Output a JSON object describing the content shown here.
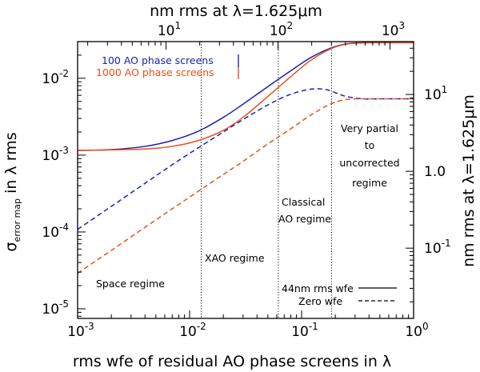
{
  "chart_data": {
    "type": "line",
    "title": "",
    "xlabel": "rms wfe of residual AO phase screens in λ",
    "ylabel_main": "σ",
    "ylabel_sub": "error map",
    "ylabel_tail": " in λ rms",
    "x2label": "nm rms at λ=1.625μm",
    "y2label": "nm rms at λ=1.625μm",
    "xscale": "log",
    "yscale": "log",
    "xlim": [
      0.001,
      1
    ],
    "ylim": [
      7.5e-06,
      0.03
    ],
    "x_ticks": [
      {
        "base": "10",
        "exp": "-3",
        "value": 0.001
      },
      {
        "base": "10",
        "exp": "-2",
        "value": 0.01
      },
      {
        "base": "10",
        "exp": "-1",
        "value": 0.1
      },
      {
        "base": "10",
        "exp": "0",
        "value": 1
      }
    ],
    "y_ticks": [
      {
        "base": "10",
        "exp": "-5",
        "value": 1e-05
      },
      {
        "base": "10",
        "exp": "-4",
        "value": 0.0001
      },
      {
        "base": "10",
        "exp": "-3",
        "value": 0.001
      },
      {
        "base": "10",
        "exp": "-2",
        "value": 0.01
      }
    ],
    "x2_ticks": [
      {
        "base": "10",
        "exp": "1",
        "value_nm": 10
      },
      {
        "base": "10",
        "exp": "2",
        "value_nm": 100
      },
      {
        "base": "10",
        "exp": "3",
        "value_nm": 1000
      }
    ],
    "y2_ticks": [
      {
        "base": "10",
        "exp": "1",
        "value_nm": 10
      },
      {
        "text": "1.0",
        "value_nm": 1
      },
      {
        "base": "10",
        "exp": "-1",
        "value_nm": 0.1
      }
    ],
    "wavelength_nm": 1625,
    "vertical_lines_x": [
      0.0127,
      0.062,
      0.185
    ],
    "legend": {
      "position": "top-left",
      "entries": [
        {
          "label": "100 AO phase screens",
          "color": "#1a22b0"
        },
        {
          "label": "1000 AO phase screens",
          "color": "#e8501a"
        }
      ]
    },
    "linestyle_legend": {
      "position": "bottom-right",
      "entries": [
        {
          "label": "44nm rms wfe",
          "style": "solid"
        },
        {
          "label": "Zero wfe",
          "style": "dashed"
        }
      ]
    },
    "annotations": {
      "space": "Space regime",
      "xao": "XAO regime",
      "classical_1": "Classical",
      "classical_2": "AO regime",
      "partial_1": "Very partial",
      "partial_2": "to",
      "partial_3": "uncorrected",
      "partial_4": "regime"
    },
    "series": [
      {
        "name": "100 AO phase screens, 44nm rms wfe",
        "color": "#1a22b0",
        "style": "solid",
        "x": [
          0.001,
          0.002,
          0.004,
          0.007,
          0.012,
          0.02,
          0.03,
          0.05,
          0.08,
          0.12,
          0.18,
          0.25,
          0.35,
          0.5,
          1.0
        ],
        "y": [
          0.00115,
          0.00118,
          0.0013,
          0.00155,
          0.00205,
          0.0031,
          0.0046,
          0.0078,
          0.0125,
          0.0185,
          0.0245,
          0.028,
          0.029,
          0.029,
          0.029
        ]
      },
      {
        "name": "1000 AO phase screens, 44nm rms wfe",
        "color": "#e8501a",
        "style": "solid",
        "x": [
          0.001,
          0.002,
          0.004,
          0.007,
          0.012,
          0.02,
          0.03,
          0.05,
          0.08,
          0.12,
          0.18,
          0.25,
          0.35,
          0.5,
          1.0
        ],
        "y": [
          0.00115,
          0.00117,
          0.0012,
          0.0013,
          0.00155,
          0.0021,
          0.0031,
          0.0058,
          0.0105,
          0.017,
          0.024,
          0.0278,
          0.0288,
          0.029,
          0.029
        ]
      },
      {
        "name": "100 AO phase screens, Zero wfe",
        "color": "#1a22b0",
        "style": "dashed",
        "x": [
          0.001,
          0.002,
          0.004,
          0.007,
          0.012,
          0.02,
          0.03,
          0.05,
          0.08,
          0.12,
          0.16,
          0.2,
          0.25,
          0.35,
          0.5,
          1.0
        ],
        "y": [
          0.000108,
          0.000215,
          0.00043,
          0.00075,
          0.00125,
          0.002,
          0.0029,
          0.0045,
          0.0062,
          0.0072,
          0.0072,
          0.0065,
          0.0058,
          0.0054,
          0.0054,
          0.0054
        ]
      },
      {
        "name": "1000 AO phase screens, Zero wfe",
        "color": "#e8501a",
        "style": "dashed",
        "x": [
          0.001,
          0.002,
          0.004,
          0.007,
          0.012,
          0.02,
          0.03,
          0.05,
          0.08,
          0.12,
          0.18,
          0.25,
          0.35,
          0.5,
          1.0
        ],
        "y": [
          2.9e-05,
          5.75e-05,
          0.000115,
          0.0002,
          0.00034,
          0.00056,
          0.00083,
          0.0014,
          0.0022,
          0.0033,
          0.0046,
          0.0053,
          0.0054,
          0.0054,
          0.0054
        ]
      }
    ]
  }
}
